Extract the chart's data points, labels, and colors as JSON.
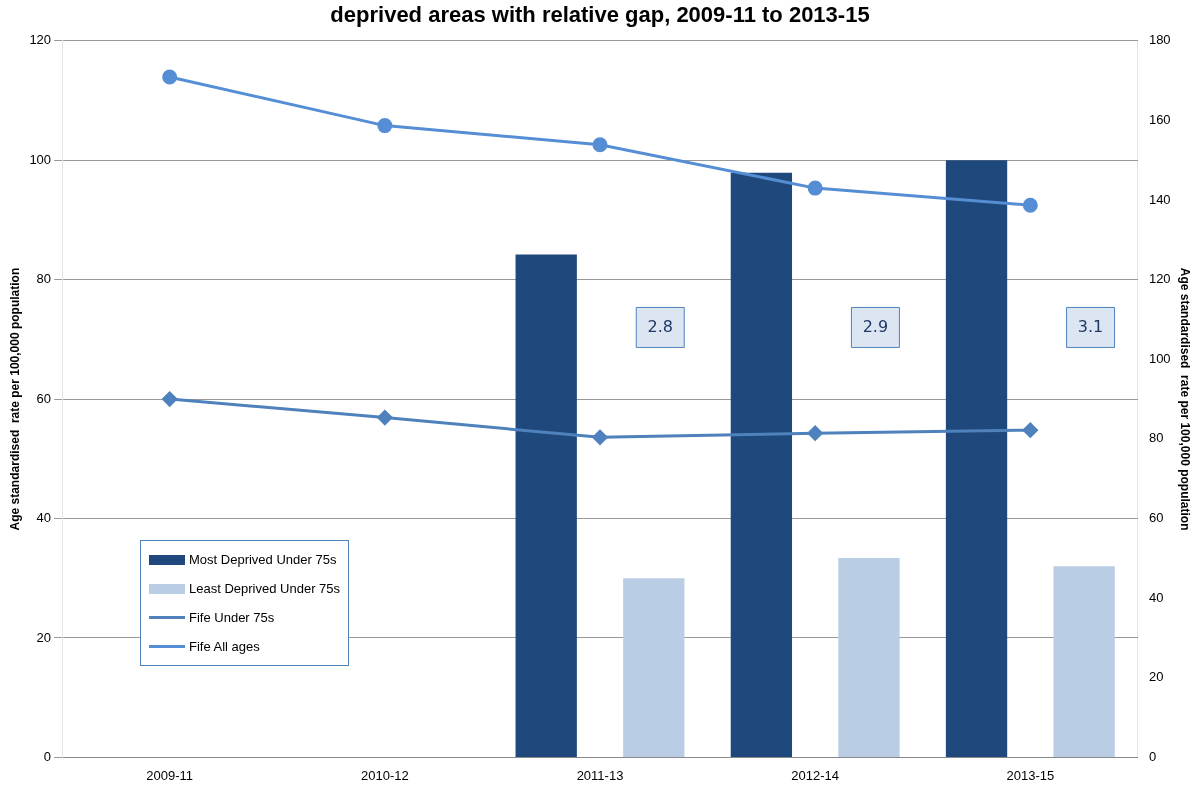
{
  "chart_data": {
    "type": "bar",
    "title": "deprived areas with relative gap, 2009-11 to 2013-15",
    "ylabel": "Age standardised  rate per 100,000 population",
    "y2label": "Age standardised  rate per 100,000 population",
    "categories": [
      "2009-11",
      "2010-12",
      "2011-13",
      "2012-14",
      "2013-15"
    ],
    "series": [
      {
        "name": "Most Deprived Under 75s",
        "color": "#1f497d",
        "values": [
          null,
          null,
          84.2,
          97.9,
          100
        ]
      },
      {
        "name": "Least Deprived Under 75s",
        "color": "#b9cde5",
        "values": [
          null,
          null,
          30,
          33.4,
          32
        ]
      },
      {
        "name": "Fife Under 75s",
        "type": "line",
        "marker": "diamond",
        "color": "#4f81bd",
        "values": [
          60,
          56.9,
          53.6,
          54.3,
          54.8
        ]
      },
      {
        "name": "Fife All ages",
        "type": "line",
        "marker": "circle",
        "axis": "y2",
        "color": "#558ed5",
        "values": [
          170.9,
          158.7,
          153.9,
          143,
          138.7
        ]
      }
    ],
    "ylim": [
      0,
      120
    ],
    "yticks": [
      0,
      20,
      40,
      60,
      80,
      100,
      120
    ],
    "y2lim": [
      0,
      180
    ],
    "y2ticks": [
      0,
      20,
      40,
      60,
      80,
      100,
      120,
      140,
      160,
      180
    ],
    "grid": "y",
    "legend": "left",
    "annotations": [
      "2.8",
      "2.9",
      "3.1"
    ]
  }
}
